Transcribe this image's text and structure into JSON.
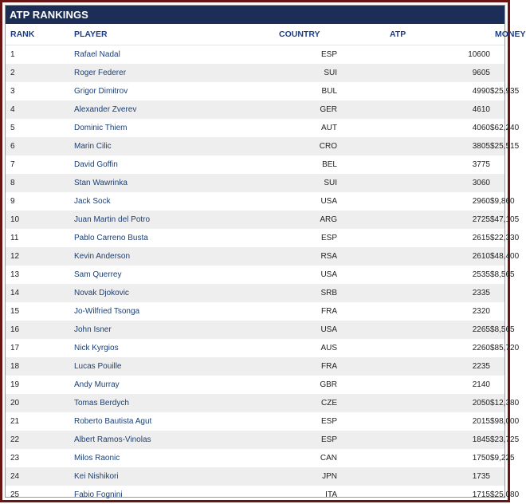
{
  "title": "ATP RANKINGS",
  "columns": {
    "rank": "RANK",
    "player": "PLAYER",
    "country": "COUNTRY",
    "atp": "ATP",
    "money": "MONEY"
  },
  "rows": [
    {
      "rank": "1",
      "player": "Rafael Nadal",
      "country": "ESP",
      "atp": "10600",
      "money": ""
    },
    {
      "rank": "2",
      "player": "Roger Federer",
      "country": "SUI",
      "atp": "9605",
      "money": ""
    },
    {
      "rank": "3",
      "player": "Grigor Dimitrov",
      "country": "BUL",
      "atp": "4990",
      "money": "$25,935"
    },
    {
      "rank": "4",
      "player": "Alexander Zverev",
      "country": "GER",
      "atp": "4610",
      "money": ""
    },
    {
      "rank": "5",
      "player": "Dominic Thiem",
      "country": "AUT",
      "atp": "4060",
      "money": "$62,240"
    },
    {
      "rank": "6",
      "player": "Marin Cilic",
      "country": "CRO",
      "atp": "3805",
      "money": "$25,515"
    },
    {
      "rank": "7",
      "player": "David Goffin",
      "country": "BEL",
      "atp": "3775",
      "money": ""
    },
    {
      "rank": "8",
      "player": "Stan Wawrinka",
      "country": "SUI",
      "atp": "3060",
      "money": ""
    },
    {
      "rank": "9",
      "player": "Jack Sock",
      "country": "USA",
      "atp": "2960",
      "money": "$9,860"
    },
    {
      "rank": "10",
      "player": "Juan Martin del Potro",
      "country": "ARG",
      "atp": "2725",
      "money": "$47,105"
    },
    {
      "rank": "11",
      "player": "Pablo Carreno Busta",
      "country": "ESP",
      "atp": "2615",
      "money": "$22,330"
    },
    {
      "rank": "12",
      "player": "Kevin Anderson",
      "country": "RSA",
      "atp": "2610",
      "money": "$48,400"
    },
    {
      "rank": "13",
      "player": "Sam Querrey",
      "country": "USA",
      "atp": "2535",
      "money": "$8,565"
    },
    {
      "rank": "14",
      "player": "Novak Djokovic",
      "country": "SRB",
      "atp": "2335",
      "money": ""
    },
    {
      "rank": "15",
      "player": "Jo-Wilfried Tsonga",
      "country": "FRA",
      "atp": "2320",
      "money": ""
    },
    {
      "rank": "16",
      "player": "John Isner",
      "country": "USA",
      "atp": "2265",
      "money": "$8,565"
    },
    {
      "rank": "17",
      "player": "Nick Kyrgios",
      "country": "AUS",
      "atp": "2260",
      "money": "$85,720"
    },
    {
      "rank": "18",
      "player": "Lucas Pouille",
      "country": "FRA",
      "atp": "2235",
      "money": ""
    },
    {
      "rank": "19",
      "player": "Andy Murray",
      "country": "GBR",
      "atp": "2140",
      "money": ""
    },
    {
      "rank": "20",
      "player": "Tomas Berdych",
      "country": "CZE",
      "atp": "2050",
      "money": "$12,380"
    },
    {
      "rank": "21",
      "player": "Roberto Bautista Agut",
      "country": "ESP",
      "atp": "2015",
      "money": "$98,000"
    },
    {
      "rank": "22",
      "player": "Albert Ramos-Vinolas",
      "country": "ESP",
      "atp": "1845",
      "money": "$23,725"
    },
    {
      "rank": "23",
      "player": "Milos Raonic",
      "country": "CAN",
      "atp": "1750",
      "money": "$9,225"
    },
    {
      "rank": "24",
      "player": "Kei Nishikori",
      "country": "JPN",
      "atp": "1735",
      "money": ""
    },
    {
      "rank": "25",
      "player": "Fabio Fognini",
      "country": "ITA",
      "atp": "1715",
      "money": "$25,080"
    }
  ]
}
